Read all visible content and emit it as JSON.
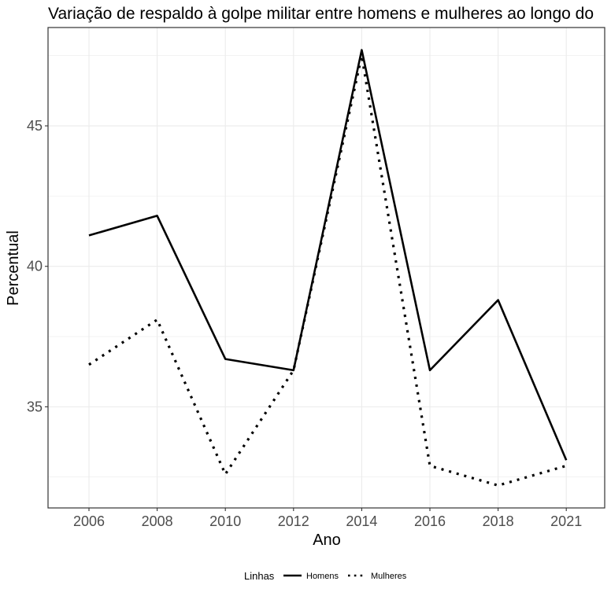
{
  "chart_data": {
    "type": "line",
    "title": "Variação de respaldo à golpe militar entre homens e mulheres ao longo do",
    "xlabel": "Ano",
    "ylabel": "Percentual",
    "categories": [
      "2006",
      "2008",
      "2010",
      "2012",
      "2014",
      "2016",
      "2018",
      "2021"
    ],
    "y_ticks": [
      35,
      40,
      45
    ],
    "ylim": [
      31.4,
      48.5
    ],
    "grid": true,
    "legend": {
      "title": "Linhas",
      "position": "bottom"
    },
    "series": [
      {
        "name": "Homens",
        "style": "solid",
        "values": [
          41.1,
          41.8,
          36.7,
          36.3,
          47.7,
          36.3,
          38.8,
          33.1
        ]
      },
      {
        "name": "Mulheres",
        "style": "dotted",
        "values": [
          36.5,
          38.1,
          32.6,
          36.3,
          47.5,
          32.9,
          32.2,
          32.9
        ]
      }
    ],
    "colors": {
      "line": "#000000",
      "grid": "#ebebeb",
      "panel_border": "#333333",
      "tick_text": "#4d4d4d"
    }
  }
}
